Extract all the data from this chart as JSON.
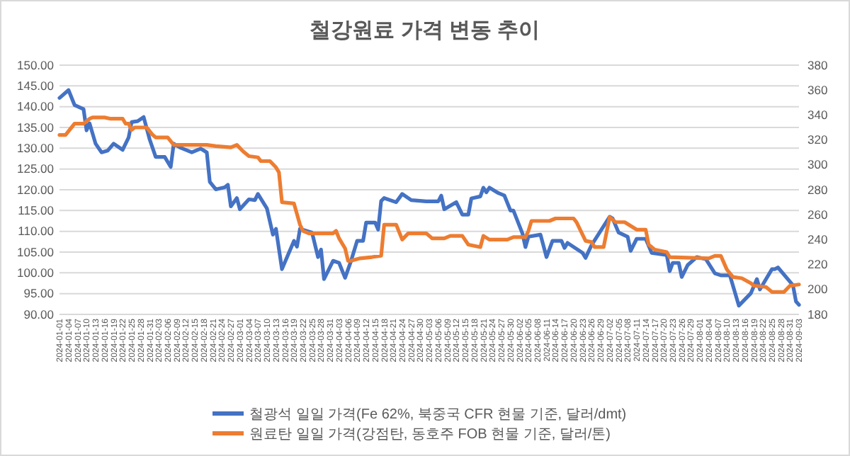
{
  "chart_data": {
    "type": "line",
    "title": "철강원료 가격 변동 추이",
    "xlim": [
      "2024-01-01",
      "2024-09-03"
    ],
    "xticks": [
      "2024-01-01",
      "2024-01-04",
      "2024-01-07",
      "2024-01-10",
      "2024-01-13",
      "2024-01-16",
      "2024-01-19",
      "2024-01-22",
      "2024-01-25",
      "2024-01-28",
      "2024-01-31",
      "2024-02-03",
      "2024-02-06",
      "2024-02-09",
      "2024-02-12",
      "2024-02-15",
      "2024-02-18",
      "2024-02-21",
      "2024-02-24",
      "2024-02-27",
      "2024-03-01",
      "2024-03-04",
      "2024-03-07",
      "2024-03-10",
      "2024-03-13",
      "2024-03-16",
      "2024-03-19",
      "2024-03-22",
      "2024-03-25",
      "2024-03-28",
      "2024-03-31",
      "2024-04-03",
      "2024-04-06",
      "2024-04-09",
      "2024-04-12",
      "2024-04-15",
      "2024-04-18",
      "2024-04-21",
      "2024-04-24",
      "2024-04-27",
      "2024-04-30",
      "2024-05-03",
      "2024-05-06",
      "2024-05-09",
      "2024-05-12",
      "2024-05-15",
      "2024-05-18",
      "2024-05-21",
      "2024-05-24",
      "2024-05-27",
      "2024-05-30",
      "2024-06-02",
      "2024-06-05",
      "2024-06-08",
      "2024-06-11",
      "2024-06-14",
      "2024-06-17",
      "2024-06-20",
      "2024-06-23",
      "2024-06-26",
      "2024-06-29",
      "2024-07-02",
      "2024-07-05",
      "2024-07-08",
      "2024-07-11",
      "2024-07-14",
      "2024-07-17",
      "2024-07-20",
      "2024-07-23",
      "2024-07-26",
      "2024-07-29",
      "2024-08-01",
      "2024-08-04",
      "2024-08-07",
      "2024-08-10",
      "2024-08-13",
      "2024-08-16",
      "2024-08-19",
      "2024-08-22",
      "2024-08-25",
      "2024-08-28",
      "2024-08-31",
      "2024-09-03"
    ],
    "ylim": [
      90,
      150
    ],
    "yticks": [
      {
        "value": 90,
        "label": "90.00"
      },
      {
        "value": 95,
        "label": "95.00"
      },
      {
        "value": 100,
        "label": "100.00"
      },
      {
        "value": 105,
        "label": "105.00"
      },
      {
        "value": 110,
        "label": "110.00"
      },
      {
        "value": 115,
        "label": "115.00"
      },
      {
        "value": 120,
        "label": "120.00"
      },
      {
        "value": 125,
        "label": "125.00"
      },
      {
        "value": 130,
        "label": "130.00"
      },
      {
        "value": 135,
        "label": "135.00"
      },
      {
        "value": 140,
        "label": "140.00"
      },
      {
        "value": 145,
        "label": "145.00"
      },
      {
        "value": 150,
        "label": "150.00"
      }
    ],
    "y2lim": [
      180,
      380
    ],
    "y2ticks": [
      180,
      200,
      220,
      240,
      260,
      280,
      300,
      320,
      340,
      360,
      380
    ],
    "grid": "y",
    "legend": "bottom",
    "series": [
      {
        "name": "철광석 일일 가격(Fe 62%, 북중국 CFR 현물 기준, 달러/dmt)",
        "color": "#4472c4",
        "x": [
          "2024-01-01",
          "2024-01-04",
          "2024-01-06",
          "2024-01-09",
          "2024-01-10",
          "2024-01-11",
          "2024-01-13",
          "2024-01-15",
          "2024-01-17",
          "2024-01-19",
          "2024-01-22",
          "2024-01-24",
          "2024-01-25",
          "2024-01-27",
          "2024-01-29",
          "2024-01-31",
          "2024-02-02",
          "2024-02-05",
          "2024-02-07",
          "2024-02-08",
          "2024-02-10",
          "2024-02-14",
          "2024-02-17",
          "2024-02-19",
          "2024-02-20",
          "2024-02-22",
          "2024-02-25",
          "2024-02-26",
          "2024-02-27",
          "2024-02-29",
          "2024-03-01",
          "2024-03-04",
          "2024-03-06",
          "2024-03-07",
          "2024-03-10",
          "2024-03-12",
          "2024-03-13",
          "2024-03-15",
          "2024-03-19",
          "2024-03-20",
          "2024-03-21",
          "2024-03-25",
          "2024-03-27",
          "2024-03-28",
          "2024-03-29",
          "2024-04-01",
          "2024-04-03",
          "2024-04-05",
          "2024-04-07",
          "2024-04-09",
          "2024-04-11",
          "2024-04-12",
          "2024-04-15",
          "2024-04-16",
          "2024-04-17",
          "2024-04-18",
          "2024-04-22",
          "2024-04-24",
          "2024-04-27",
          "2024-05-02",
          "2024-05-06",
          "2024-05-07",
          "2024-05-08",
          "2024-05-12",
          "2024-05-14",
          "2024-05-16",
          "2024-05-17",
          "2024-05-20",
          "2024-05-21",
          "2024-05-22",
          "2024-05-23",
          "2024-05-26",
          "2024-05-28",
          "2024-05-30",
          "2024-05-31",
          "2024-06-03",
          "2024-06-04",
          "2024-06-05",
          "2024-06-09",
          "2024-06-11",
          "2024-06-13",
          "2024-06-16",
          "2024-06-17",
          "2024-06-18",
          "2024-06-23",
          "2024-06-24",
          "2024-06-26",
          "2024-07-02",
          "2024-07-03",
          "2024-07-05",
          "2024-07-08",
          "2024-07-09",
          "2024-07-11",
          "2024-07-14",
          "2024-07-16",
          "2024-07-21",
          "2024-07-22",
          "2024-07-23",
          "2024-07-25",
          "2024-07-26",
          "2024-07-28",
          "2024-07-31",
          "2024-08-03",
          "2024-08-06",
          "2024-08-08",
          "2024-08-11",
          "2024-08-14",
          "2024-08-18",
          "2024-08-20",
          "2024-08-21",
          "2024-08-25",
          "2024-08-26",
          "2024-08-27",
          "2024-09-01",
          "2024-09-02",
          "2024-09-03"
        ],
        "values": [
          142.1,
          144.0,
          140.4,
          139.4,
          134.3,
          136.0,
          131.1,
          129.0,
          129.4,
          131.1,
          129.6,
          132.6,
          136.3,
          136.5,
          137.5,
          132.1,
          127.9,
          127.9,
          125.5,
          131.1,
          130.2,
          129.0,
          129.9,
          129.0,
          121.9,
          120.1,
          120.6,
          121.2,
          116.0,
          118.0,
          115.3,
          117.7,
          117.5,
          119.0,
          115.5,
          109.2,
          110.6,
          100.9,
          107.7,
          106.3,
          110.6,
          109.7,
          103.8,
          105.6,
          98.5,
          102.9,
          102.4,
          98.8,
          102.9,
          107.7,
          107.7,
          112.1,
          112.1,
          110.4,
          117.3,
          118.0,
          117.0,
          119.0,
          117.5,
          117.2,
          117.2,
          118.6,
          115.3,
          117.0,
          114.0,
          114.0,
          117.9,
          118.4,
          120.5,
          119.4,
          120.5,
          119.2,
          118.6,
          115.0,
          115.0,
          109.5,
          106.2,
          108.7,
          109.2,
          103.8,
          107.7,
          107.7,
          106.0,
          107.2,
          104.8,
          103.6,
          106.7,
          113.5,
          113.1,
          109.7,
          108.7,
          105.3,
          108.2,
          108.2,
          104.8,
          104.3,
          100.4,
          102.4,
          102.4,
          99.0,
          101.9,
          103.8,
          103.3,
          99.9,
          99.4,
          99.4,
          92.1,
          95.1,
          98.5,
          96.0,
          100.9,
          100.9,
          101.3,
          97.0,
          93.1,
          92.3
        ]
      },
      {
        "name": "원료탄 일일 가격(강점탄, 동호주 FOB 현물 기준, 달러/톤)",
        "color": "#ed7d31",
        "axis": "y2",
        "x": [
          "2024-01-01",
          "2024-01-03",
          "2024-01-05",
          "2024-01-06",
          "2024-01-09",
          "2024-01-11",
          "2024-01-12",
          "2024-01-16",
          "2024-01-18",
          "2024-01-22",
          "2024-01-23",
          "2024-01-24",
          "2024-01-25",
          "2024-01-26",
          "2024-01-30",
          "2024-02-01",
          "2024-02-02",
          "2024-02-06",
          "2024-02-08",
          "2024-02-19",
          "2024-02-22",
          "2024-02-27",
          "2024-02-29",
          "2024-03-02",
          "2024-03-04",
          "2024-03-07",
          "2024-03-08",
          "2024-03-11",
          "2024-03-13",
          "2024-03-14",
          "2024-03-15",
          "2024-03-19",
          "2024-03-21",
          "2024-03-22",
          "2024-03-24",
          "2024-04-01",
          "2024-04-02",
          "2024-04-03",
          "2024-04-05",
          "2024-04-06",
          "2024-04-07",
          "2024-04-10",
          "2024-04-14",
          "2024-04-17",
          "2024-04-18",
          "2024-04-22",
          "2024-04-24",
          "2024-04-26",
          "2024-04-30",
          "2024-05-02",
          "2024-05-04",
          "2024-05-08",
          "2024-05-10",
          "2024-05-14",
          "2024-05-16",
          "2024-05-20",
          "2024-05-21",
          "2024-05-23",
          "2024-05-29",
          "2024-05-31",
          "2024-06-04",
          "2024-06-05",
          "2024-06-06",
          "2024-06-12",
          "2024-06-14",
          "2024-06-20",
          "2024-06-21",
          "2024-06-24",
          "2024-06-26",
          "2024-06-27",
          "2024-06-30",
          "2024-07-02",
          "2024-07-04",
          "2024-07-07",
          "2024-07-09",
          "2024-07-11",
          "2024-07-14",
          "2024-07-15",
          "2024-07-17",
          "2024-07-21",
          "2024-07-22",
          "2024-08-04",
          "2024-08-06",
          "2024-08-08",
          "2024-08-10",
          "2024-08-12",
          "2024-08-15",
          "2024-08-18",
          "2024-08-19",
          "2024-08-23",
          "2024-08-25",
          "2024-08-29",
          "2024-08-31",
          "2024-09-03"
        ],
        "values": [
          324,
          324,
          330,
          333,
          333,
          337,
          338,
          338,
          337,
          337,
          333,
          333,
          328,
          330,
          330,
          324,
          322,
          322,
          316,
          316,
          315,
          314,
          316,
          311,
          307,
          306,
          303,
          303,
          298,
          294,
          270,
          269,
          252,
          247,
          245,
          245,
          247,
          241,
          233,
          223,
          223,
          225,
          226,
          227,
          252,
          252,
          240,
          245,
          245,
          245,
          241,
          241,
          243,
          243,
          236,
          234,
          243,
          240,
          240,
          242,
          242,
          247,
          255,
          255,
          257,
          257,
          254,
          239,
          238,
          234,
          234,
          258,
          254,
          254,
          251,
          248,
          248,
          236,
          232,
          230,
          226,
          225,
          227,
          227,
          216,
          210,
          209,
          205,
          203,
          202,
          198,
          198,
          203,
          204
        ]
      }
    ]
  }
}
